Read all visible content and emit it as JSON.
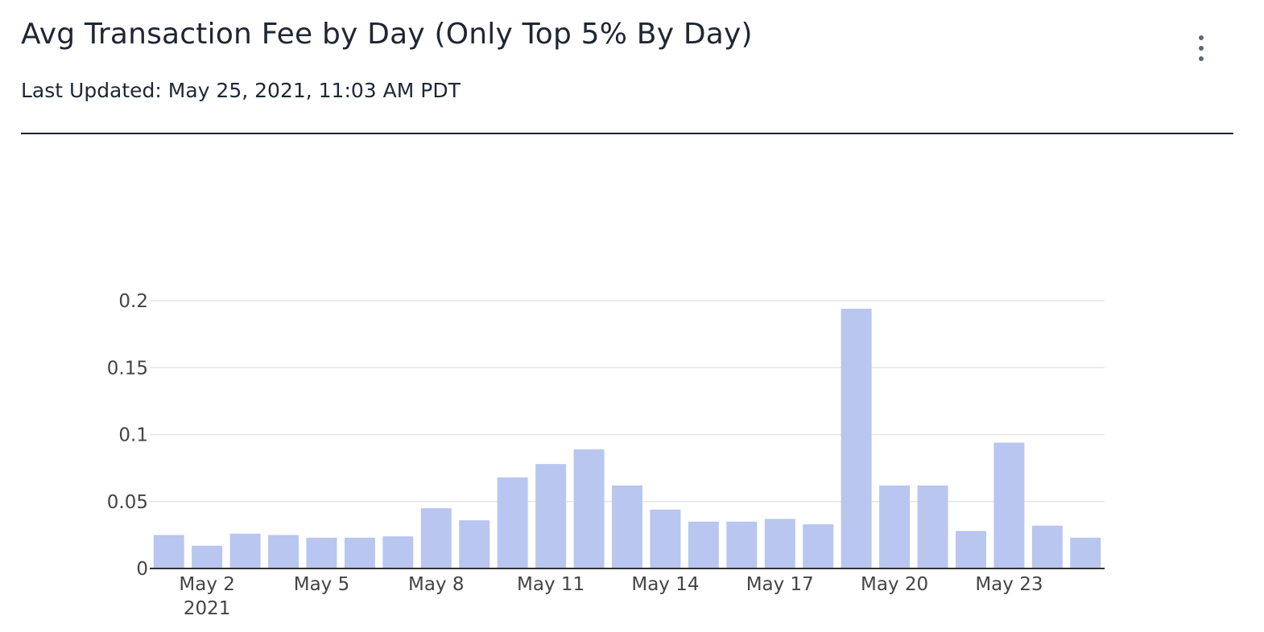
{
  "header": {
    "title": "Avg Transaction Fee by Day (Only Top 5% By Day)",
    "last_updated": "Last Updated: May 25, 2021, 11:03 AM PDT",
    "menu_icon": "more-vertical-icon"
  },
  "colors": {
    "bar": "#b8c6f0",
    "grid": "#e6e6e6",
    "axis": "#333333",
    "text": "#444444"
  },
  "chart_data": {
    "type": "bar",
    "title": "Avg Transaction Fee by Day (Only Top 5% By Day)",
    "xlabel": "",
    "ylabel": "",
    "ylim": [
      0,
      0.2
    ],
    "grid": true,
    "categories": [
      "May 1",
      "May 2",
      "May 3",
      "May 4",
      "May 5",
      "May 6",
      "May 7",
      "May 8",
      "May 9",
      "May 10",
      "May 11",
      "May 12",
      "May 13",
      "May 14",
      "May 15",
      "May 16",
      "May 17",
      "May 18",
      "May 19",
      "May 20",
      "May 21",
      "May 22",
      "May 23",
      "May 24",
      "May 25"
    ],
    "values": [
      0.025,
      0.017,
      0.026,
      0.025,
      0.023,
      0.023,
      0.024,
      0.045,
      0.036,
      0.068,
      0.078,
      0.089,
      0.062,
      0.044,
      0.035,
      0.035,
      0.037,
      0.033,
      0.194,
      0.062,
      0.062,
      0.028,
      0.094,
      0.032,
      0.023
    ],
    "y_ticks": [
      {
        "value": 0,
        "label": "0"
      },
      {
        "value": 0.05,
        "label": "0.05"
      },
      {
        "value": 0.1,
        "label": "0.1"
      },
      {
        "value": 0.15,
        "label": "0.15"
      },
      {
        "value": 0.2,
        "label": "0.2"
      }
    ],
    "x_ticks": [
      {
        "index": 1,
        "label": "May 2",
        "sublabel": "2021"
      },
      {
        "index": 4,
        "label": "May 5",
        "sublabel": ""
      },
      {
        "index": 7,
        "label": "May 8",
        "sublabel": ""
      },
      {
        "index": 10,
        "label": "May 11",
        "sublabel": ""
      },
      {
        "index": 13,
        "label": "May 14",
        "sublabel": ""
      },
      {
        "index": 16,
        "label": "May 17",
        "sublabel": ""
      },
      {
        "index": 19,
        "label": "May 20",
        "sublabel": ""
      },
      {
        "index": 22,
        "label": "May 23",
        "sublabel": ""
      }
    ]
  }
}
